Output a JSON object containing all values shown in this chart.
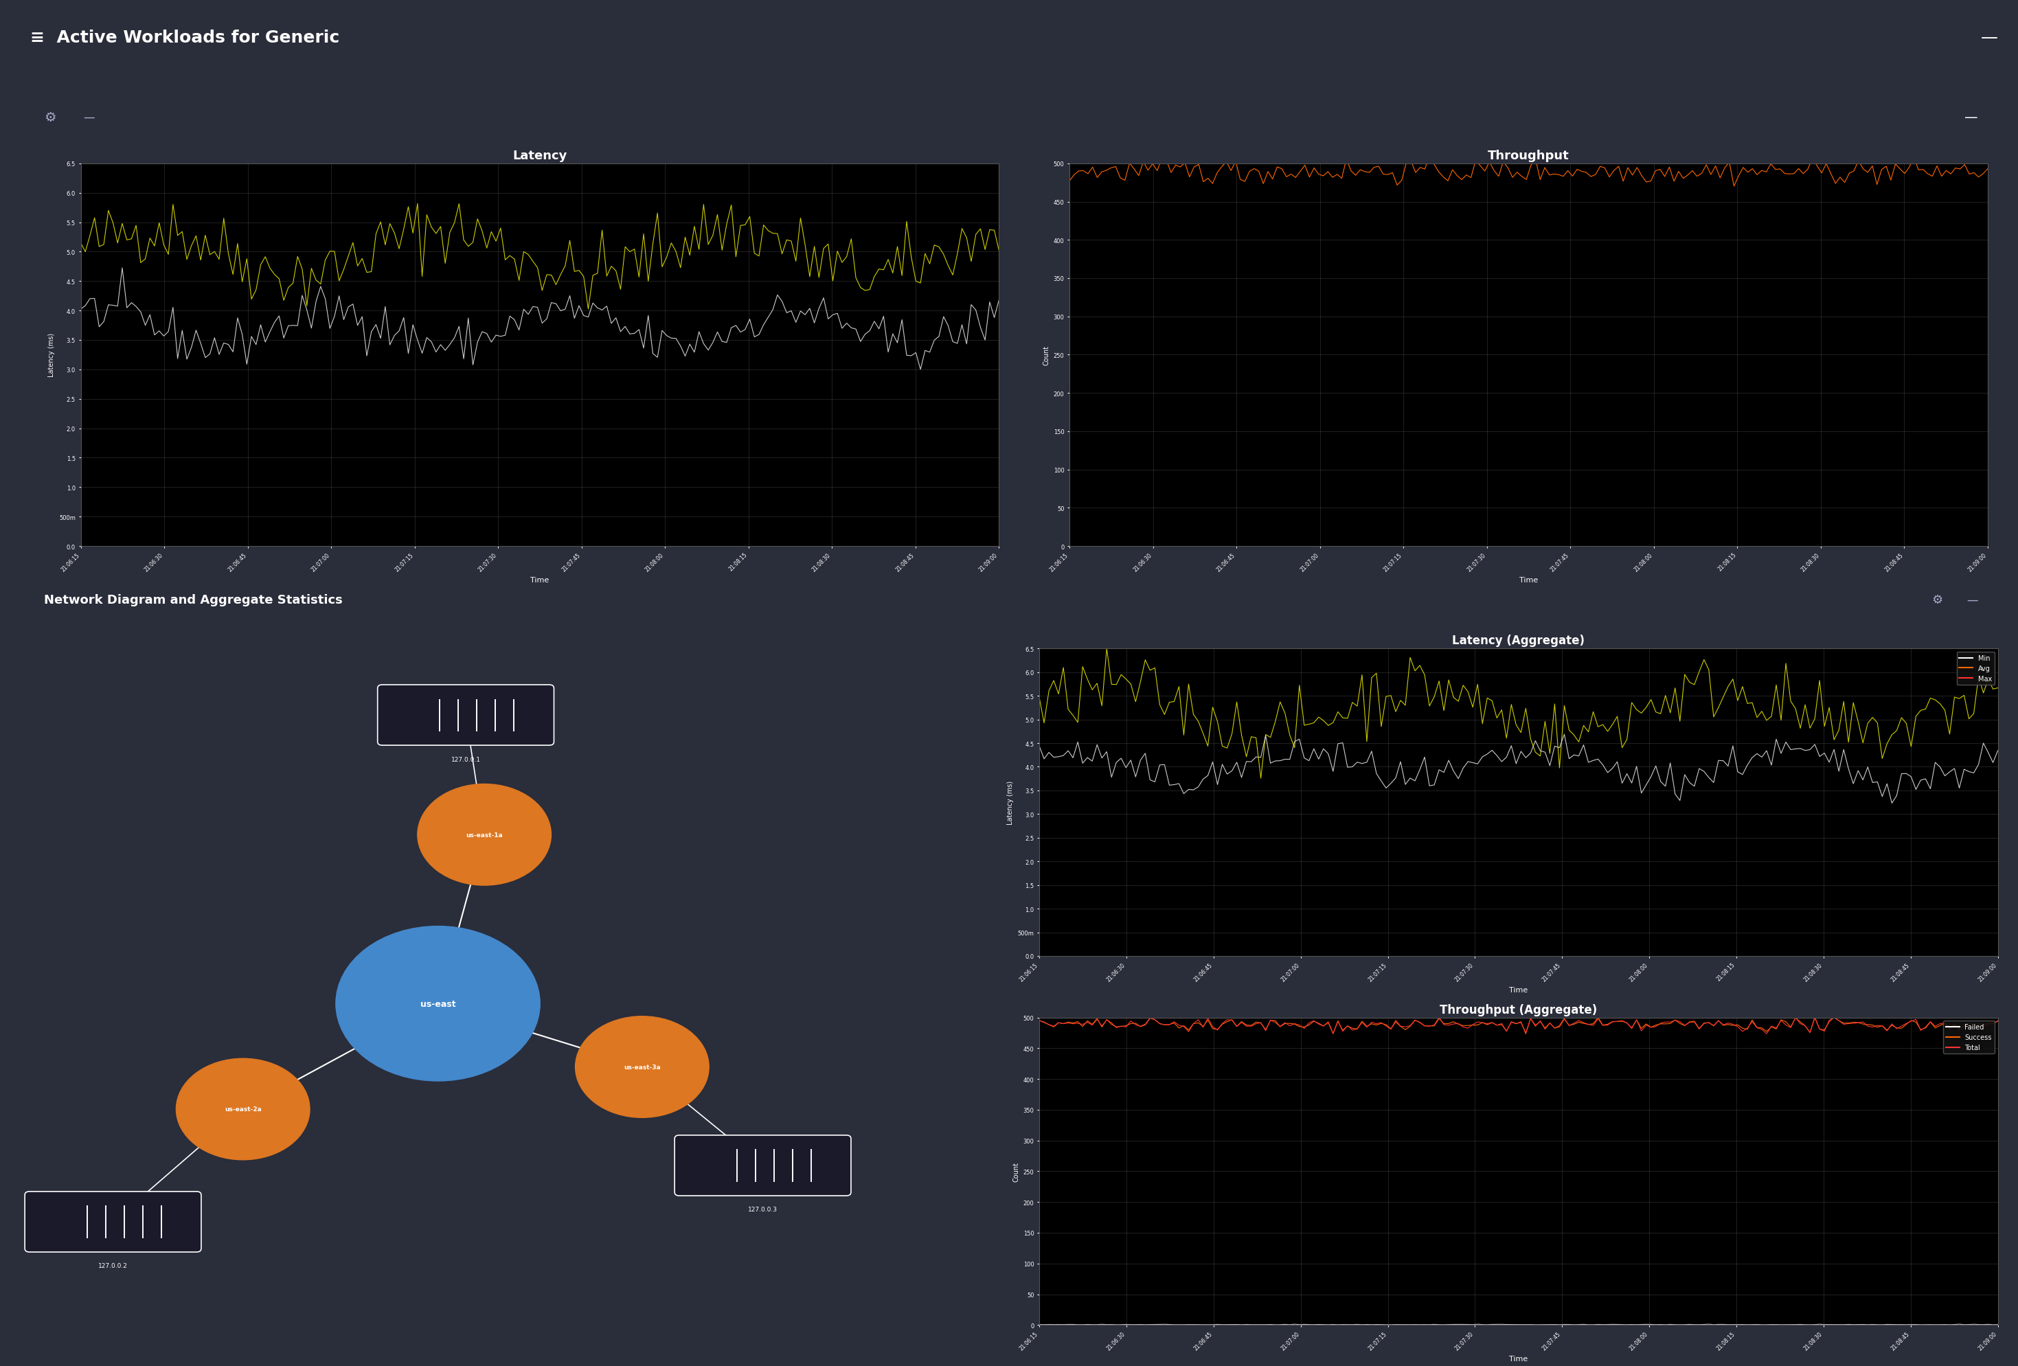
{
  "title_bar": "Active Workloads for Generic",
  "title_bar_color": "#1a1aaa",
  "background_color": "#2a2d3a",
  "chart_bg": "#000000",
  "blue_header_color": "#1a1aaa",
  "section2_title": "Network Diagram and Aggregate Statistics",
  "latency_title": "Latency",
  "throughput_title": "Throughput",
  "latency_agg_title": "Latency (Aggregate)",
  "throughput_agg_title": "Throughput (Aggregate)",
  "latency_ylabel": "Latency (ms)",
  "throughput_ylabel": "Count",
  "time_xlabel": "Time",
  "latency_yticks": [
    0.0,
    0.5,
    1.0,
    1.5,
    2.0,
    2.5,
    3.0,
    3.5,
    4.0,
    4.5,
    5.0,
    5.5,
    6.0,
    6.5
  ],
  "latency_ytick_labels": [
    "0.0",
    "500m",
    "1.0",
    "1.5",
    "2.0",
    "2.5",
    "3.0",
    "3.5",
    "4.0",
    "4.5",
    "5.0",
    "5.5",
    "6.0",
    "6.5"
  ],
  "latency_ylim": [
    0.0,
    6.5
  ],
  "throughput_yticks": [
    0,
    50,
    100,
    150,
    200,
    250,
    300,
    350,
    400,
    450,
    500
  ],
  "throughput_ylim": [
    0,
    500
  ],
  "time_ticks": [
    "21:06:15",
    "21:06:30",
    "21:06:45",
    "21:07:00",
    "21:07:15",
    "21:07:30",
    "21:07:45",
    "21:08:00",
    "21:08:15",
    "21:08:30",
    "21:08:45",
    "21:09:00"
  ],
  "yellow_line_color": "#cccc00",
  "white_line_color": "#cccccc",
  "orange_line_color": "#ff6600",
  "red_line_color": "#ff3333",
  "grid_color": "#404040",
  "node_center_color": "#4488cc",
  "node_outer_color": "#dd7722",
  "node_center_label": "us-east",
  "legend_min": "Min",
  "legend_avg": "Avg",
  "legend_max": "Max",
  "legend_failed": "Failed",
  "legend_success": "Success",
  "legend_total": "Total"
}
